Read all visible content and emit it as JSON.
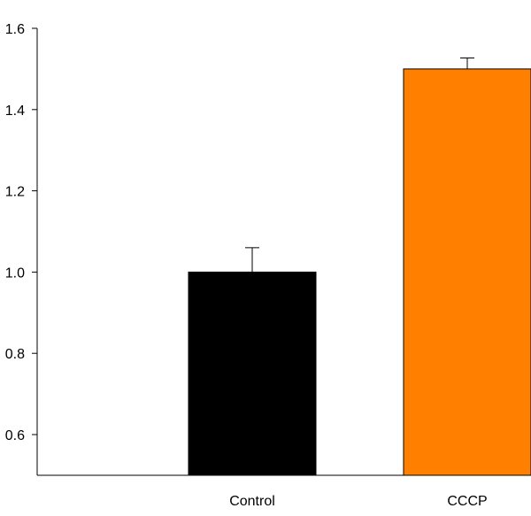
{
  "chart_data": {
    "type": "bar",
    "categories": [
      "Control",
      "CCCP"
    ],
    "values": [
      1.0,
      1.5
    ],
    "errors": [
      0.06,
      0.027
    ],
    "colors": [
      "#000000",
      "#ff7f00"
    ],
    "ylim": [
      0.5,
      1.6
    ],
    "yticks": [
      0.6,
      0.8,
      1.0,
      1.2,
      1.4,
      1.6
    ],
    "ytick_labels": [
      "0.6",
      "0.8",
      "1.0",
      "1.2",
      "1.4",
      "1.6"
    ],
    "title": "",
    "xlabel": "",
    "ylabel": "",
    "grid": false
  }
}
